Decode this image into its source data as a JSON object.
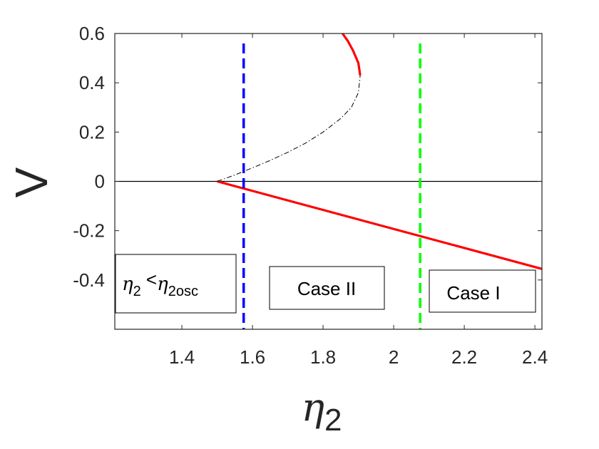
{
  "chart_data": {
    "type": "line",
    "xlabel": "η₂",
    "xlabel_main": "η",
    "xlabel_sub": "2",
    "ylabel": "V",
    "xlim": [
      1.21,
      2.42
    ],
    "ylim": [
      -0.6,
      0.6
    ],
    "xticks": [
      1.4,
      1.6,
      1.8,
      2,
      2.2,
      2.4
    ],
    "xtick_labels": [
      "1.4",
      "1.6",
      "1.8",
      "2",
      "2.2",
      "2.4"
    ],
    "yticks": [
      0.6,
      0.4,
      0.2,
      0,
      -0.2,
      -0.4
    ],
    "ytick_labels": [
      "0.6",
      "0.4",
      "0.2",
      "0",
      "-0.2",
      "-0.4"
    ],
    "grid": false,
    "series": [
      {
        "style": "solid",
        "color": "#000000",
        "points": [
          [
            1.21,
            0
          ],
          [
            2.42,
            0
          ]
        ]
      },
      {
        "style": "solid",
        "color": "#ff0000",
        "points": [
          [
            1.5,
            0
          ],
          [
            2.42,
            -0.355
          ]
        ]
      },
      {
        "style": "dashdot",
        "color": "#000000",
        "points": [
          [
            1.5,
            0
          ],
          [
            1.55,
            0.026
          ],
          [
            1.6,
            0.055
          ],
          [
            1.65,
            0.085
          ],
          [
            1.7,
            0.118
          ],
          [
            1.75,
            0.155
          ],
          [
            1.8,
            0.2
          ],
          [
            1.85,
            0.255
          ],
          [
            1.88,
            0.3
          ],
          [
            1.9,
            0.36
          ],
          [
            1.905,
            0.43
          ]
        ]
      },
      {
        "style": "solid",
        "color": "#ff0000",
        "points": [
          [
            1.905,
            0.43
          ],
          [
            1.9,
            0.48
          ],
          [
            1.885,
            0.53
          ],
          [
            1.87,
            0.57
          ],
          [
            1.855,
            0.6
          ]
        ]
      }
    ],
    "vlines": [
      {
        "x": 1.575,
        "color": "#0000ff",
        "style": "dashed"
      },
      {
        "x": 2.075,
        "color": "#00ff00",
        "style": "dashed"
      }
    ],
    "annotations": [
      {
        "text_main": "η",
        "text_sub": "2",
        "text_op": " <",
        "text_main2": "η",
        "text_sub2": "2osc"
      },
      {
        "text": "Case II"
      },
      {
        "text": "Case I"
      }
    ]
  }
}
